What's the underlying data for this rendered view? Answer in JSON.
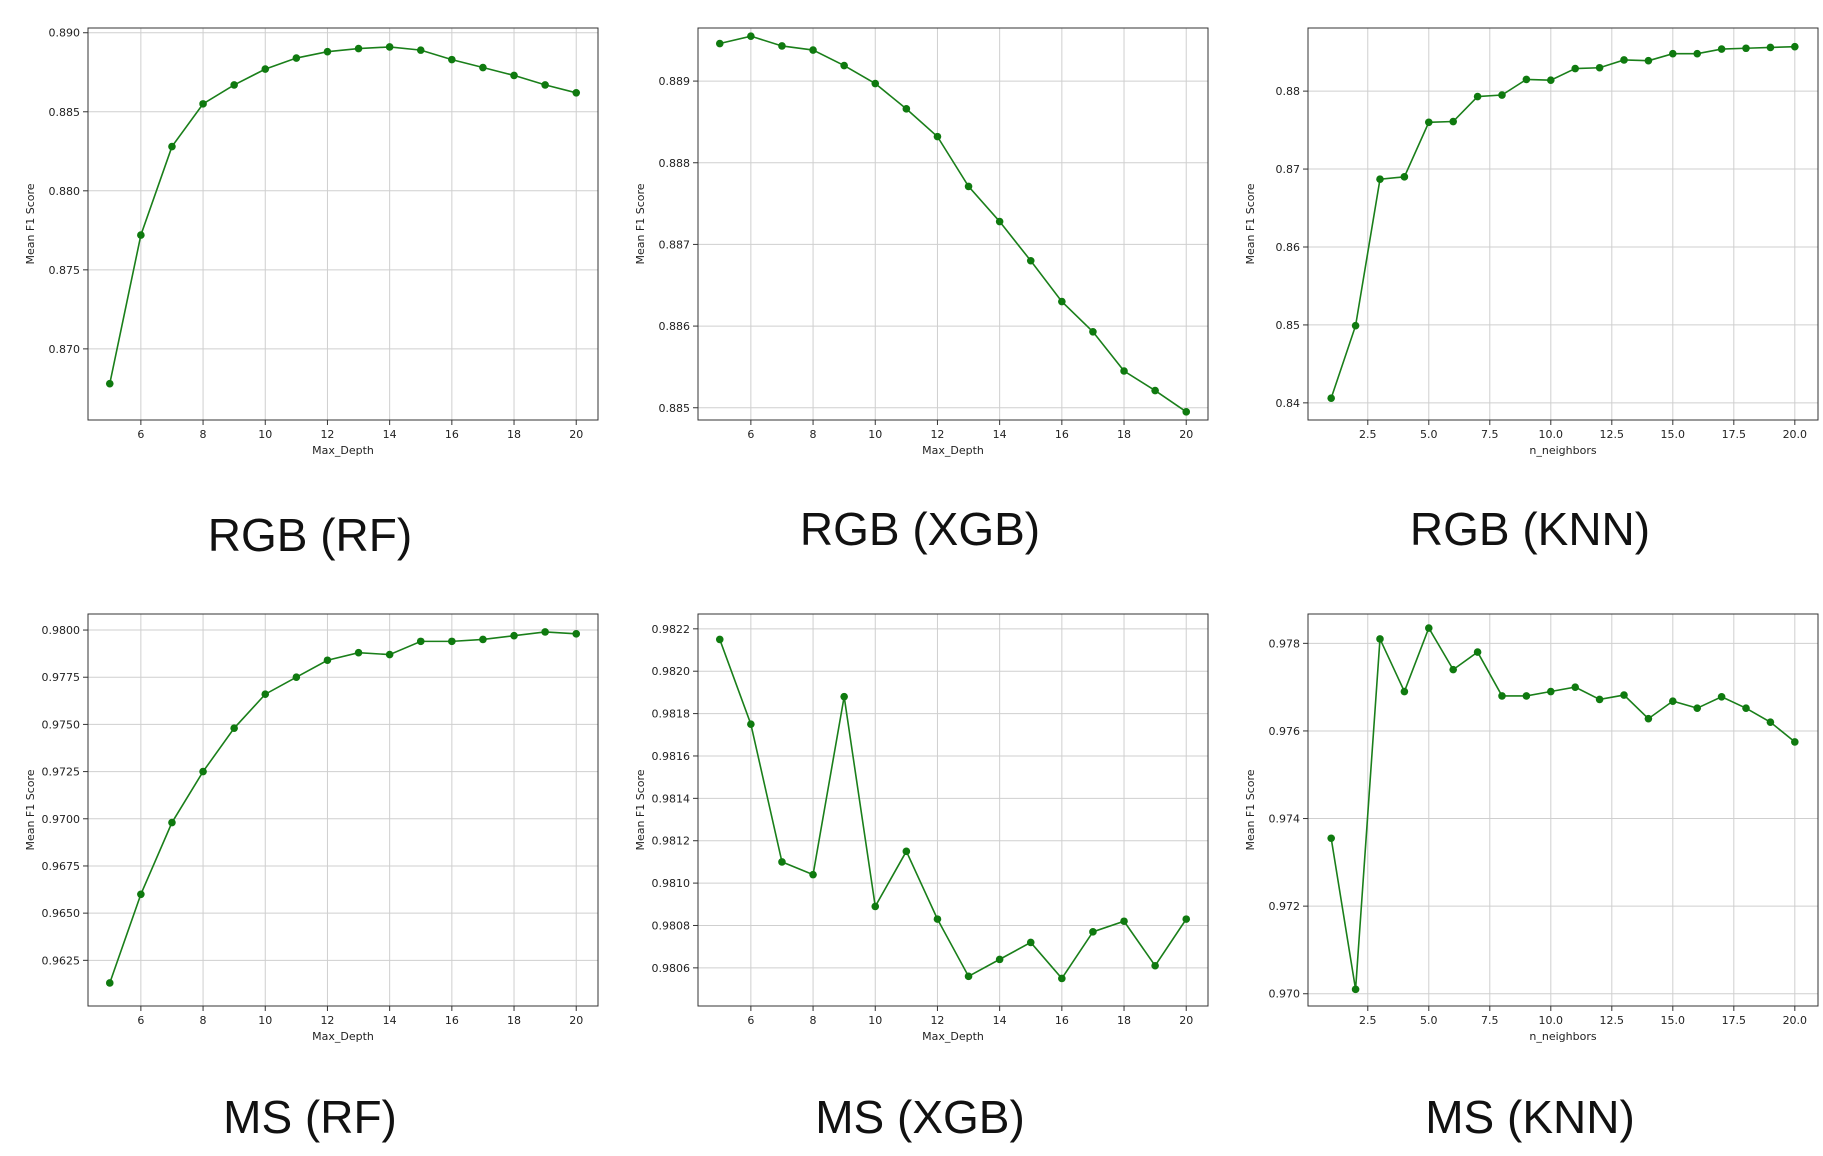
{
  "colors": {
    "line": "#1a7f1a",
    "point": "#0f7a0f",
    "grid": "#cfcfcf",
    "frame": "#333333"
  },
  "chart_data": [
    {
      "caption": "RGB (RF)",
      "type": "line",
      "xlabel": "Max_Depth",
      "ylabel": "Mean F1 Score",
      "xlim": [
        4.3,
        20.7
      ],
      "ylim": [
        0.8655,
        0.8903
      ],
      "xticks": [
        6,
        8,
        10,
        12,
        14,
        16,
        18,
        20
      ],
      "xtick_labels": [
        "6",
        "8",
        "10",
        "12",
        "14",
        "16",
        "18",
        "20"
      ],
      "yticks": [
        0.87,
        0.875,
        0.88,
        0.885,
        0.89
      ],
      "ytick_labels": [
        "0.870",
        "0.875",
        "0.880",
        "0.885",
        "0.890"
      ],
      "grid": true,
      "x": [
        5,
        6,
        7,
        8,
        9,
        10,
        11,
        12,
        13,
        14,
        15,
        16,
        17,
        18,
        19,
        20
      ],
      "y": [
        0.8678,
        0.8772,
        0.8828,
        0.8855,
        0.8867,
        0.8877,
        0.8884,
        0.8888,
        0.889,
        0.8891,
        0.8889,
        0.8883,
        0.8878,
        0.8873,
        0.8867,
        0.8862
      ]
    },
    {
      "caption": "RGB (XGB)",
      "type": "line",
      "xlabel": "Max_Depth",
      "ylabel": "Mean F1 Score",
      "xlim": [
        4.3,
        20.7
      ],
      "ylim": [
        0.88485,
        0.88965
      ],
      "xticks": [
        6,
        8,
        10,
        12,
        14,
        16,
        18,
        20
      ],
      "xtick_labels": [
        "6",
        "8",
        "10",
        "12",
        "14",
        "16",
        "18",
        "20"
      ],
      "yticks": [
        0.885,
        0.886,
        0.887,
        0.888,
        0.889
      ],
      "ytick_labels": [
        "0.885",
        "0.886",
        "0.887",
        "0.888",
        "0.889"
      ],
      "grid": true,
      "x": [
        5,
        6,
        7,
        8,
        9,
        10,
        11,
        12,
        13,
        14,
        15,
        16,
        17,
        18,
        19,
        20
      ],
      "y": [
        0.88946,
        0.88955,
        0.88943,
        0.88938,
        0.88919,
        0.88897,
        0.88866,
        0.88832,
        0.88771,
        0.88728,
        0.8868,
        0.8863,
        0.88593,
        0.88545,
        0.88521,
        0.88495
      ]
    },
    {
      "caption": "RGB (KNN)",
      "type": "line",
      "xlabel": "n_neighbors",
      "ylabel": "Mean F1 Score",
      "xlim": [
        0.05,
        20.95
      ],
      "ylim": [
        0.8378,
        0.8881
      ],
      "xticks": [
        2.5,
        5.0,
        7.5,
        10.0,
        12.5,
        15.0,
        17.5,
        20.0
      ],
      "xtick_labels": [
        "2.5",
        "5.0",
        "7.5",
        "10.0",
        "12.5",
        "15.0",
        "17.5",
        "20.0"
      ],
      "yticks": [
        0.84,
        0.85,
        0.86,
        0.87,
        0.88
      ],
      "ytick_labels": [
        "0.84",
        "0.85",
        "0.86",
        "0.87",
        "0.88"
      ],
      "grid": true,
      "x": [
        1,
        2,
        3,
        4,
        5,
        6,
        7,
        8,
        9,
        10,
        11,
        12,
        13,
        14,
        15,
        16,
        17,
        18,
        19,
        20
      ],
      "y": [
        0.8406,
        0.8499,
        0.8687,
        0.869,
        0.876,
        0.8761,
        0.8793,
        0.8795,
        0.8815,
        0.8814,
        0.8829,
        0.883,
        0.884,
        0.8839,
        0.8848,
        0.8848,
        0.8854,
        0.8855,
        0.8856,
        0.8857
      ]
    },
    {
      "caption": "MS (RF)",
      "type": "line",
      "xlabel": "Max_Depth",
      "ylabel": "Mean F1 Score",
      "xlim": [
        4.3,
        20.7
      ],
      "ylim": [
        0.96008,
        0.98085
      ],
      "xticks": [
        6,
        8,
        10,
        12,
        14,
        16,
        18,
        20
      ],
      "xtick_labels": [
        "6",
        "8",
        "10",
        "12",
        "14",
        "16",
        "18",
        "20"
      ],
      "yticks": [
        0.9625,
        0.965,
        0.9675,
        0.97,
        0.9725,
        0.975,
        0.9775,
        0.98
      ],
      "ytick_labels": [
        "0.9625",
        "0.9650",
        "0.9675",
        "0.9700",
        "0.9725",
        "0.9750",
        "0.9775",
        "0.9800"
      ],
      "grid": true,
      "x": [
        5,
        6,
        7,
        8,
        9,
        10,
        11,
        12,
        13,
        14,
        15,
        16,
        17,
        18,
        19,
        20
      ],
      "y": [
        0.9613,
        0.966,
        0.9698,
        0.9725,
        0.9748,
        0.9766,
        0.9775,
        0.9784,
        0.9788,
        0.9787,
        0.9794,
        0.9794,
        0.9795,
        0.9797,
        0.9799,
        0.9798
      ]
    },
    {
      "caption": "MS (XGB)",
      "type": "line",
      "xlabel": "Max_Depth",
      "ylabel": "Mean F1 Score",
      "xlim": [
        4.3,
        20.7
      ],
      "ylim": [
        0.98042,
        0.98227
      ],
      "xticks": [
        6,
        8,
        10,
        12,
        14,
        16,
        18,
        20
      ],
      "xtick_labels": [
        "6",
        "8",
        "10",
        "12",
        "14",
        "16",
        "18",
        "20"
      ],
      "yticks": [
        0.9806,
        0.9808,
        0.981,
        0.9812,
        0.9814,
        0.9816,
        0.9818,
        0.982,
        0.9822
      ],
      "ytick_labels": [
        "0.9806",
        "0.9808",
        "0.9810",
        "0.9812",
        "0.9814",
        "0.9816",
        "0.9818",
        "0.9820",
        "0.9822"
      ],
      "grid": true,
      "x": [
        5,
        6,
        7,
        8,
        9,
        10,
        11,
        12,
        13,
        14,
        15,
        16,
        17,
        18,
        19,
        20
      ],
      "y": [
        0.98215,
        0.98175,
        0.9811,
        0.98104,
        0.98188,
        0.98089,
        0.98115,
        0.98083,
        0.98056,
        0.98064,
        0.98072,
        0.98055,
        0.98077,
        0.98082,
        0.98061,
        0.98083
      ]
    },
    {
      "caption": "MS (KNN)",
      "type": "line",
      "xlabel": "n_neighbors",
      "ylabel": "Mean F1 Score",
      "xlim": [
        0.05,
        20.95
      ],
      "ylim": [
        0.96972,
        0.97867
      ],
      "xticks": [
        2.5,
        5.0,
        7.5,
        10.0,
        12.5,
        15.0,
        17.5,
        20.0
      ],
      "xtick_labels": [
        "2.5",
        "5.0",
        "7.5",
        "10.0",
        "12.5",
        "15.0",
        "17.5",
        "20.0"
      ],
      "yticks": [
        0.97,
        0.972,
        0.974,
        0.976,
        0.978
      ],
      "ytick_labels": [
        "0.970",
        "0.972",
        "0.974",
        "0.976",
        "0.978"
      ],
      "grid": true,
      "x": [
        1,
        2,
        3,
        4,
        5,
        6,
        7,
        8,
        9,
        10,
        11,
        12,
        13,
        14,
        15,
        16,
        17,
        18,
        19,
        20
      ],
      "y": [
        0.97355,
        0.9701,
        0.9781,
        0.9769,
        0.97835,
        0.9774,
        0.9778,
        0.9768,
        0.9768,
        0.9769,
        0.977,
        0.97672,
        0.97682,
        0.97628,
        0.97668,
        0.97652,
        0.97678,
        0.97652,
        0.9762,
        0.97575
      ]
    }
  ]
}
